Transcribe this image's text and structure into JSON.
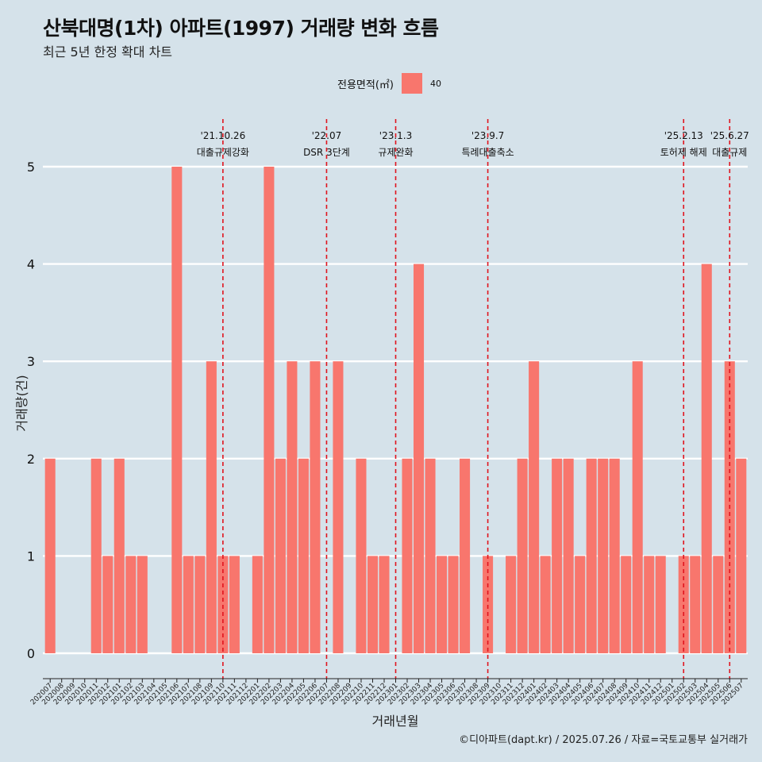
{
  "header": {
    "title": "산북대명(1차) 아파트(1997) 거래량 변화 흐름",
    "subtitle": "최근 5년 한정 확대 차트"
  },
  "legend": {
    "title": "전용면적(㎡)",
    "label": "40",
    "color": "#f8766d"
  },
  "caption": "©디아파트(dapt.kr) / 2025.07.26 / 자료=국토교통부 실거래가",
  "chart_data": {
    "type": "bar",
    "xlabel": "거래년월",
    "ylabel": "거래량(건)",
    "ylim": [
      0,
      5
    ],
    "y_ticks": [
      "0",
      "1",
      "2",
      "3",
      "4",
      "5"
    ],
    "grid": true,
    "legend_position": "top",
    "bar_color": "#f8766d",
    "categories": [
      "202007",
      "202008",
      "202009",
      "202010",
      "202011",
      "202012",
      "202101",
      "202102",
      "202103",
      "202104",
      "202105",
      "202106",
      "202107",
      "202108",
      "202109",
      "202110",
      "202111",
      "202112",
      "202201",
      "202202",
      "202203",
      "202204",
      "202205",
      "202206",
      "202207",
      "202208",
      "202209",
      "202210",
      "202211",
      "202212",
      "202301",
      "202302",
      "202303",
      "202304",
      "202305",
      "202306",
      "202307",
      "202308",
      "202309",
      "202310",
      "202311",
      "202312",
      "202401",
      "202402",
      "202403",
      "202404",
      "202405",
      "202406",
      "202407",
      "202408",
      "202409",
      "202410",
      "202411",
      "202412",
      "202501",
      "202502",
      "202503",
      "202504",
      "202505",
      "202506",
      "202507"
    ],
    "series": [
      {
        "name": "40",
        "values": [
          2,
          0,
          0,
          0,
          2,
          1,
          2,
          1,
          1,
          0,
          0,
          5,
          1,
          1,
          3,
          1,
          1,
          0,
          1,
          5,
          2,
          3,
          2,
          3,
          0,
          3,
          0,
          2,
          1,
          1,
          0,
          2,
          4,
          2,
          1,
          1,
          2,
          0,
          1,
          0,
          1,
          2,
          3,
          1,
          2,
          2,
          1,
          2,
          2,
          2,
          1,
          3,
          1,
          1,
          0,
          1,
          1,
          4,
          1,
          3,
          2
        ]
      }
    ],
    "annotations": [
      {
        "date": "'21.10.26",
        "label": "대출규제강화",
        "x": "202110"
      },
      {
        "date": "'22.07",
        "label": "DSR 3단계",
        "x": "202207"
      },
      {
        "date": "'23.1.3",
        "label": "규제완화",
        "x": "202301"
      },
      {
        "date": "'23.9.7",
        "label": "특례대출축소",
        "x": "202309"
      },
      {
        "date": "'25.2.13",
        "label": "토허제 해제",
        "x": "202502"
      },
      {
        "date": "'25.6.27",
        "label": "대출규제",
        "x": "202506"
      }
    ],
    "annotation_line_color": "#e0141e"
  }
}
